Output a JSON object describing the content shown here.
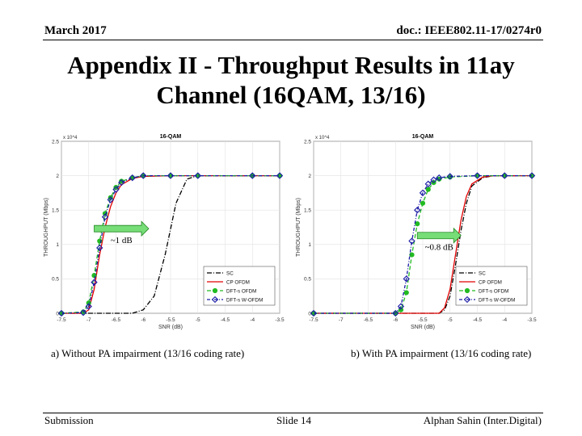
{
  "header": {
    "date": "March 2017",
    "doc_id": "doc.: IEEE802.11-17/0274r0"
  },
  "slide": {
    "title_line1": "Appendix II - Throughput Results in 11ay",
    "title_line2": "Channel (16QAM, 13/16)"
  },
  "captions": {
    "a": "a) Without PA impairment (13/16 coding rate)",
    "b": "b) With PA impairment (13/16 coding rate)"
  },
  "footer": {
    "left": "Submission",
    "center": "Slide 14",
    "right": "Alphan Sahin (Inter.Digital)"
  },
  "chart_data": [
    {
      "type": "line",
      "title": "16-QAM",
      "xlabel": "SNR (dB)",
      "ylabel": "THROUGHPUT (Mbps)",
      "y_multiplier": "x 10^4",
      "xlim": [
        -7.5,
        -3.5
      ],
      "ylim": [
        0,
        2.5
      ],
      "xticks": [
        -7.5,
        -7,
        -6.5,
        -6,
        -5.5,
        -5,
        -4.5,
        -4,
        -3.5
      ],
      "yticks": [
        0,
        0.5,
        1,
        1.5,
        2,
        2.5
      ],
      "grid": true,
      "legend_position": "bottom-right",
      "annotation": {
        "text": "~1 dB",
        "x_from": -6.9,
        "x_to": -5.9,
        "y": 1.23
      },
      "series": [
        {
          "name": "SC",
          "color": "#000000",
          "dash": "6,2,1,2",
          "marker": "none",
          "x": [
            -7.5,
            -7,
            -6.5,
            -6.2,
            -6,
            -5.8,
            -5.6,
            -5.4,
            -5.2,
            -5,
            -4.8,
            -4.5,
            -4,
            -3.5
          ],
          "y": [
            0,
            0,
            0,
            0,
            0.05,
            0.25,
            0.85,
            1.6,
            1.95,
            2.0,
            2.0,
            2.0,
            2.0,
            2.0
          ]
        },
        {
          "name": "CP OFDM",
          "color": "#e00000",
          "dash": "",
          "marker": "none",
          "x": [
            -7.5,
            -7.1,
            -7,
            -6.9,
            -6.8,
            -6.7,
            -6.6,
            -6.5,
            -6.4,
            -6.2,
            -6,
            -5.5,
            -5,
            -4,
            -3.5
          ],
          "y": [
            0,
            0,
            0.05,
            0.35,
            0.85,
            1.25,
            1.55,
            1.75,
            1.87,
            1.96,
            1.99,
            2.0,
            2.0,
            2.0,
            2.0
          ]
        },
        {
          "name": "DFT-s OFDM",
          "color": "#22bb22",
          "dash": "5,3",
          "marker": "circle",
          "x": [
            -7.5,
            -7.1,
            -7,
            -6.9,
            -6.8,
            -6.7,
            -6.6,
            -6.5,
            -6.4,
            -6.2,
            -6,
            -5.5,
            -5,
            -4,
            -3.5
          ],
          "y": [
            0,
            0.02,
            0.15,
            0.55,
            1.05,
            1.45,
            1.68,
            1.83,
            1.92,
            1.97,
            2.0,
            2.0,
            2.0,
            2.0,
            2.0
          ]
        },
        {
          "name": "DFT-s W-OFDM",
          "color": "#1a1aa6",
          "dash": "4,2,1,2",
          "marker": "diamond",
          "x": [
            -7.5,
            -7.1,
            -7,
            -6.9,
            -6.8,
            -6.7,
            -6.6,
            -6.5,
            -6.4,
            -6.2,
            -6,
            -5.5,
            -5,
            -4,
            -3.5
          ],
          "y": [
            0,
            0.01,
            0.1,
            0.45,
            0.95,
            1.4,
            1.65,
            1.8,
            1.9,
            1.97,
            2.0,
            2.0,
            2.0,
            2.0,
            2.0
          ]
        }
      ]
    },
    {
      "type": "line",
      "title": "16-QAM",
      "xlabel": "SNR (dB)",
      "ylabel": "THROUGHPUT (Mbps)",
      "y_multiplier": "x 10^4",
      "xlim": [
        -7.5,
        -3.5
      ],
      "ylim": [
        0,
        2.5
      ],
      "xticks": [
        -7.5,
        -7,
        -6.5,
        -6,
        -5.5,
        -5,
        -4.5,
        -4,
        -3.5
      ],
      "yticks": [
        0,
        0.5,
        1,
        1.5,
        2,
        2.5
      ],
      "grid": true,
      "legend_position": "bottom-right",
      "annotation": {
        "text": "~0.8 dB",
        "x_from": -5.6,
        "x_to": -4.8,
        "y": 1.13
      },
      "series": [
        {
          "name": "SC",
          "color": "#000000",
          "dash": "6,2,1,2",
          "marker": "none",
          "x": [
            -7.5,
            -6,
            -5.2,
            -5.1,
            -5,
            -4.9,
            -4.8,
            -4.7,
            -4.6,
            -4.4,
            -4.2,
            -4,
            -3.5
          ],
          "y": [
            0,
            0,
            0,
            0.05,
            0.25,
            0.7,
            1.2,
            1.6,
            1.85,
            1.97,
            2.0,
            2.0,
            2.0
          ]
        },
        {
          "name": "CP OFDM",
          "color": "#e00000",
          "dash": "",
          "marker": "none",
          "x": [
            -7.5,
            -6,
            -5.2,
            -5.1,
            -5,
            -4.9,
            -4.8,
            -4.7,
            -4.6,
            -4.4,
            -4.2,
            -4,
            -3.5
          ],
          "y": [
            0,
            0,
            0,
            0.08,
            0.35,
            0.85,
            1.35,
            1.7,
            1.88,
            1.98,
            2.0,
            2.0,
            2.0
          ]
        },
        {
          "name": "DFT-s OFDM",
          "color": "#22bb22",
          "dash": "5,3",
          "marker": "circle",
          "x": [
            -7.5,
            -6,
            -5.9,
            -5.8,
            -5.7,
            -5.6,
            -5.5,
            -5.4,
            -5.3,
            -5.2,
            -5,
            -4.5,
            -4,
            -3.5
          ],
          "y": [
            0,
            0,
            0.05,
            0.3,
            0.85,
            1.3,
            1.6,
            1.8,
            1.9,
            1.95,
            1.98,
            2.0,
            2.0,
            2.0
          ]
        },
        {
          "name": "DFT-s W-OFDM",
          "color": "#1a1aa6",
          "dash": "4,2,1,2",
          "marker": "diamond",
          "x": [
            -7.5,
            -6,
            -5.9,
            -5.8,
            -5.7,
            -5.6,
            -5.5,
            -5.4,
            -5.3,
            -5.2,
            -5,
            -4.5,
            -4,
            -3.5
          ],
          "y": [
            0,
            0,
            0.1,
            0.5,
            1.05,
            1.5,
            1.75,
            1.88,
            1.94,
            1.97,
            1.99,
            2.0,
            2.0,
            2.0
          ]
        }
      ]
    }
  ]
}
